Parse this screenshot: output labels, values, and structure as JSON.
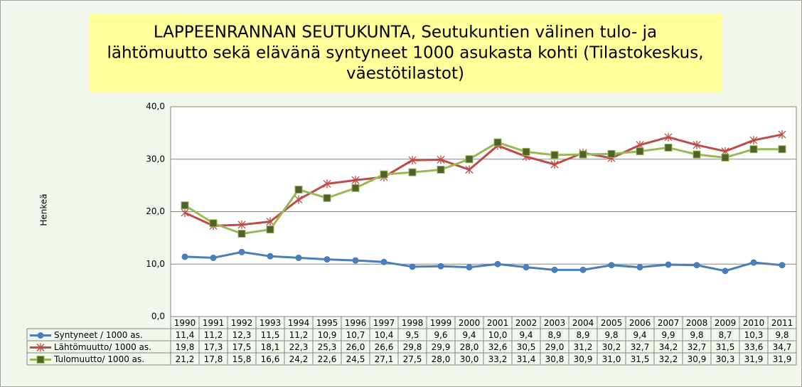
{
  "chart_data": {
    "type": "line",
    "title": [
      "LAPPEENRANNAN SEUTUKUNTA, Seutukuntien välinen tulo- ja",
      "lähtömuutto sekä elävänä syntyneet 1000 asukasta kohti (Tilastokeskus,",
      "väestötilastot)"
    ],
    "y_label": "Henkeä",
    "categories": [
      "1990",
      "1991",
      "1992",
      "1993",
      "1994",
      "1995",
      "1996",
      "1997",
      "1998",
      "1999",
      "2000",
      "2001",
      "2002",
      "2003",
      "2004",
      "2005",
      "2006",
      "2007",
      "2008",
      "2009",
      "2010",
      "2011"
    ],
    "ylim": [
      0,
      40
    ],
    "yticks": [
      {
        "value": 0,
        "label": "0,0"
      },
      {
        "value": 10,
        "label": "10,0"
      },
      {
        "value": 20,
        "label": "20,0"
      },
      {
        "value": 30,
        "label": "30,0"
      },
      {
        "value": 40,
        "label": "40,0"
      }
    ],
    "grid": true,
    "series": [
      {
        "name": "Syntyneet / 1000 as.",
        "color": "#4a7ebb",
        "marker": "circle",
        "marker_color": "#4a7ebb",
        "values": [
          11.4,
          11.2,
          12.3,
          11.5,
          11.2,
          10.9,
          10.7,
          10.4,
          9.5,
          9.6,
          9.4,
          10.0,
          9.4,
          8.9,
          8.9,
          9.8,
          9.4,
          9.9,
          9.8,
          8.7,
          10.3,
          9.8
        ],
        "value_labels": [
          "11,4",
          "11,2",
          "12,3",
          "11,5",
          "11,2",
          "10,9",
          "10,7",
          "10,4",
          "9,5",
          "9,6",
          "9,4",
          "10,0",
          "9,4",
          "8,9",
          "8,9",
          "9,8",
          "9,4",
          "9,9",
          "9,8",
          "8,7",
          "10,3",
          "9,8"
        ]
      },
      {
        "name": "Lähtömuutto/ 1000 as.",
        "color": "#be4b48",
        "marker": "star",
        "marker_color": "#be4b48",
        "values": [
          19.8,
          17.3,
          17.5,
          18.1,
          22.3,
          25.3,
          26.0,
          26.6,
          29.8,
          29.9,
          28.0,
          32.6,
          30.5,
          29.0,
          31.2,
          30.2,
          32.7,
          34.2,
          32.7,
          31.5,
          33.6,
          34.7
        ],
        "value_labels": [
          "19,8",
          "17,3",
          "17,5",
          "18,1",
          "22,3",
          "25,3",
          "26,0",
          "26,6",
          "29,8",
          "29,9",
          "28,0",
          "32,6",
          "30,5",
          "29,0",
          "31,2",
          "30,2",
          "32,7",
          "34,2",
          "32,7",
          "31,5",
          "33,6",
          "34,7"
        ]
      },
      {
        "name": "Tulomuutto/ 1000 as.",
        "color": "#98b954",
        "marker": "square",
        "marker_color": "#4f6228",
        "values": [
          21.2,
          17.8,
          15.8,
          16.6,
          24.2,
          22.6,
          24.5,
          27.1,
          27.5,
          28.0,
          30.0,
          33.2,
          31.4,
          30.8,
          30.9,
          31.0,
          31.5,
          32.2,
          30.9,
          30.3,
          31.9,
          31.9
        ],
        "value_labels": [
          "21,2",
          "17,8",
          "15,8",
          "16,6",
          "24,2",
          "22,6",
          "24,5",
          "27,1",
          "27,5",
          "28,0",
          "30,0",
          "33,2",
          "31,4",
          "30,8",
          "30,9",
          "31,0",
          "31,5",
          "32,2",
          "30,9",
          "30,3",
          "31,9",
          "31,9"
        ]
      }
    ]
  }
}
